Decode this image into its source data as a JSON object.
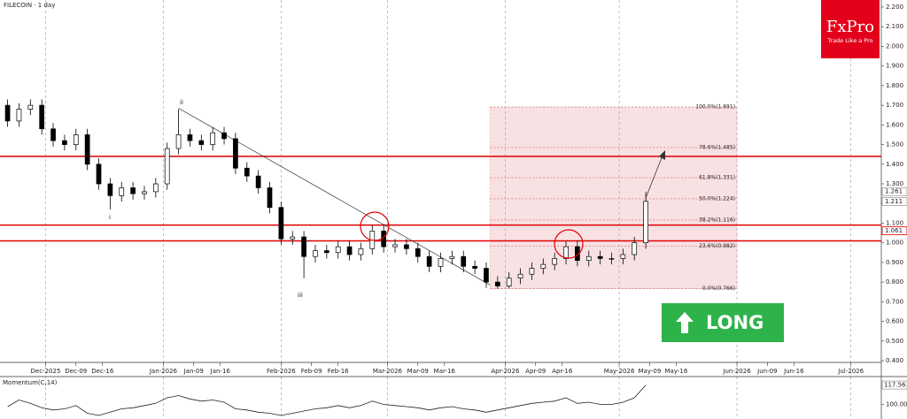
{
  "chart_data": {
    "type": "candlestick",
    "title": "FILECOIN · 1 day",
    "x": [
      "2025-11-21",
      "2025-11-24",
      "2025-11-27",
      "2025-11-30",
      "2025-12-03",
      "2025-12-06",
      "2025-12-09",
      "2025-12-12",
      "2025-12-15",
      "2025-12-18",
      "2025-12-21",
      "2025-12-24",
      "2025-12-27",
      "2025-12-30",
      "2026-01-02",
      "2026-01-05",
      "2026-01-08",
      "2026-01-11",
      "2026-01-14",
      "2026-01-17",
      "2026-01-20",
      "2026-01-23",
      "2026-01-26",
      "2026-01-29",
      "2026-02-01",
      "2026-02-04",
      "2026-02-07",
      "2026-02-10",
      "2026-02-13",
      "2026-02-16",
      "2026-02-19",
      "2026-02-22",
      "2026-02-25",
      "2026-02-28",
      "2026-03-03",
      "2026-03-06",
      "2026-03-09",
      "2026-03-12",
      "2026-03-15",
      "2026-03-18",
      "2026-03-21",
      "2026-03-24",
      "2026-03-27",
      "2026-03-30",
      "2026-04-02",
      "2026-04-05",
      "2026-04-08",
      "2026-04-11",
      "2026-04-14",
      "2026-04-17",
      "2026-04-20",
      "2026-04-23",
      "2026-04-26",
      "2026-04-29",
      "2026-05-02",
      "2026-05-05",
      "2026-05-08"
    ],
    "open": [
      1.7,
      1.62,
      1.68,
      1.7,
      1.58,
      1.52,
      1.5,
      1.55,
      1.4,
      1.3,
      1.24,
      1.28,
      1.25,
      1.26,
      1.3,
      1.48,
      1.55,
      1.52,
      1.5,
      1.56,
      1.53,
      1.38,
      1.34,
      1.28,
      1.18,
      1.02,
      1.03,
      0.93,
      0.96,
      0.95,
      0.98,
      0.94,
      0.97,
      1.06,
      0.98,
      0.99,
      0.97,
      0.93,
      0.88,
      0.92,
      0.93,
      0.88,
      0.87,
      0.8,
      0.78,
      0.82,
      0.84,
      0.87,
      0.89,
      0.92,
      0.98,
      0.91,
      0.93,
      0.92,
      0.92,
      0.94,
      1.0
    ],
    "high": [
      1.73,
      1.71,
      1.73,
      1.73,
      1.61,
      1.55,
      1.58,
      1.58,
      1.43,
      1.33,
      1.31,
      1.31,
      1.29,
      1.33,
      1.51,
      1.68,
      1.58,
      1.55,
      1.59,
      1.59,
      1.56,
      1.41,
      1.37,
      1.31,
      1.21,
      1.06,
      1.06,
      0.99,
      0.99,
      1.01,
      1.01,
      1.0,
      1.09,
      1.09,
      1.02,
      1.02,
      1.0,
      0.96,
      0.95,
      0.96,
      0.96,
      0.91,
      0.9,
      0.83,
      0.85,
      0.87,
      0.9,
      0.92,
      0.95,
      1.01,
      1.01,
      0.96,
      0.96,
      0.95,
      0.97,
      1.03,
      1.26
    ],
    "low": [
      1.59,
      1.59,
      1.65,
      1.55,
      1.49,
      1.47,
      1.47,
      1.37,
      1.27,
      1.17,
      1.21,
      1.22,
      1.22,
      1.23,
      1.27,
      1.45,
      1.49,
      1.47,
      1.47,
      1.5,
      1.35,
      1.31,
      1.25,
      1.15,
      0.99,
      0.99,
      0.82,
      0.9,
      0.92,
      0.92,
      0.91,
      0.91,
      0.94,
      0.95,
      0.95,
      0.94,
      0.9,
      0.85,
      0.85,
      0.89,
      0.85,
      0.84,
      0.77,
      0.766,
      0.77,
      0.79,
      0.81,
      0.84,
      0.86,
      0.89,
      0.88,
      0.88,
      0.89,
      0.89,
      0.89,
      0.91,
      0.97
    ],
    "close": [
      1.62,
      1.68,
      1.7,
      1.58,
      1.52,
      1.5,
      1.55,
      1.4,
      1.3,
      1.24,
      1.28,
      1.25,
      1.26,
      1.3,
      1.48,
      1.55,
      1.52,
      1.5,
      1.56,
      1.53,
      1.38,
      1.34,
      1.28,
      1.18,
      1.02,
      1.03,
      0.93,
      0.96,
      0.95,
      0.98,
      0.94,
      0.97,
      1.06,
      0.98,
      0.99,
      0.97,
      0.93,
      0.88,
      0.92,
      0.93,
      0.88,
      0.87,
      0.8,
      0.78,
      0.82,
      0.84,
      0.87,
      0.89,
      0.92,
      0.98,
      0.91,
      0.93,
      0.92,
      0.92,
      0.94,
      1.0,
      1.211
    ],
    "xlim": [
      "2025-11-19",
      "2026-07-09"
    ],
    "xticks": [
      {
        "value": "2025-12-01",
        "label": "Dec-2025"
      },
      {
        "value": "2025-12-09",
        "label": "Dec-09"
      },
      {
        "value": "2025-12-16",
        "label": "Dec-16"
      },
      {
        "value": "2026-01-01",
        "label": "Jan-2026"
      },
      {
        "value": "2026-01-09",
        "label": "Jan-09"
      },
      {
        "value": "2026-01-16",
        "label": "Jan-16"
      },
      {
        "value": "2026-02-01",
        "label": "Feb-2026"
      },
      {
        "value": "2026-02-09",
        "label": "Feb-09"
      },
      {
        "value": "2026-02-16",
        "label": "Feb-16"
      },
      {
        "value": "2026-03-01",
        "label": "Mar-2026"
      },
      {
        "value": "2026-03-09",
        "label": "Mar-09"
      },
      {
        "value": "2026-03-16",
        "label": "Mar-16"
      },
      {
        "value": "2026-04-01",
        "label": "Apr-2026"
      },
      {
        "value": "2026-04-09",
        "label": "Apr-09"
      },
      {
        "value": "2026-04-16",
        "label": "Apr-16"
      },
      {
        "value": "2026-05-01",
        "label": "May-2026"
      },
      {
        "value": "2026-05-09",
        "label": "May-09"
      },
      {
        "value": "2026-05-16",
        "label": "May-16"
      },
      {
        "value": "2026-06-01",
        "label": "Jun-2026"
      },
      {
        "value": "2026-06-09",
        "label": "Jun-09"
      },
      {
        "value": "2026-06-16",
        "label": "Jun-16"
      },
      {
        "value": "2026-07-01",
        "label": "Jul-2026"
      }
    ],
    "ylim": [
      0.4,
      2.2
    ],
    "yticks": [
      {
        "value": 2.2,
        "label": "2.200"
      },
      {
        "value": 2.1,
        "label": "2.100"
      },
      {
        "value": 2.0,
        "label": "2.000"
      },
      {
        "value": 1.9,
        "label": "1.900"
      },
      {
        "value": 1.8,
        "label": "1.800"
      },
      {
        "value": 1.7,
        "label": "1.700"
      },
      {
        "value": 1.6,
        "label": "1.600"
      },
      {
        "value": 1.5,
        "label": "1.500"
      },
      {
        "value": 1.4,
        "label": "1.400"
      },
      {
        "value": 1.3,
        "label": "1.300"
      },
      {
        "value": 1.2,
        "label": "1.200"
      },
      {
        "value": 1.1,
        "label": "1.100"
      },
      {
        "value": 1.0,
        "label": "1.000"
      },
      {
        "value": 0.9,
        "label": "0.900"
      },
      {
        "value": 0.8,
        "label": "0.800"
      },
      {
        "value": 0.7,
        "label": "0.700"
      },
      {
        "value": 0.6,
        "label": "0.600"
      },
      {
        "value": 0.5,
        "label": "0.500"
      },
      {
        "value": 0.4,
        "label": "0.400"
      }
    ],
    "levels": [
      1.44,
      1.09,
      1.01
    ],
    "level_color": "#e00000",
    "price_markers": [
      1.261,
      1.211
    ],
    "red_marker": 1.061,
    "trendline": {
      "x": [
        "2026-01-05",
        "2026-03-28"
      ],
      "y": [
        1.685,
        0.785
      ]
    },
    "fib": {
      "start": "2026-03-28",
      "end": "2026-06-01",
      "levels": [
        {
          "value": 1.691,
          "label": "100.0%(1.691)"
        },
        {
          "value": 1.485,
          "label": "78.6%(1.485)"
        },
        {
          "value": 1.331,
          "label": "61.8%(1.331)"
        },
        {
          "value": 1.224,
          "label": "50.0%(1.224)"
        },
        {
          "value": 1.116,
          "label": "38.2%(1.116)"
        },
        {
          "value": 0.982,
          "label": "23.6%(0.982)"
        },
        {
          "value": 0.766,
          "label": "0.0%(0.766)"
        }
      ]
    },
    "wave_labels": [
      "ii",
      "i",
      "iii"
    ],
    "signal": "LONG",
    "momentum": {
      "title": "Momentum(C,14)",
      "ylim": [
        90,
        122
      ],
      "yticks": [
        {
          "value": 100,
          "label": "100.00"
        }
      ],
      "values": [
        98,
        104,
        101,
        97,
        95,
        96,
        99,
        92,
        90,
        93,
        96,
        97,
        99,
        101,
        106,
        108,
        105,
        103,
        104,
        102,
        96,
        95,
        93,
        92,
        90,
        92,
        94,
        96,
        97,
        99,
        97,
        99,
        103,
        100,
        99,
        98,
        97,
        95,
        97,
        98,
        96,
        95,
        93,
        95,
        97,
        99,
        101,
        102,
        103,
        106,
        101,
        102,
        100,
        100,
        102,
        106,
        117.56
      ]
    }
  },
  "logo": {
    "brand": "FxPro",
    "tagline": "Trade Like a Pro"
  }
}
